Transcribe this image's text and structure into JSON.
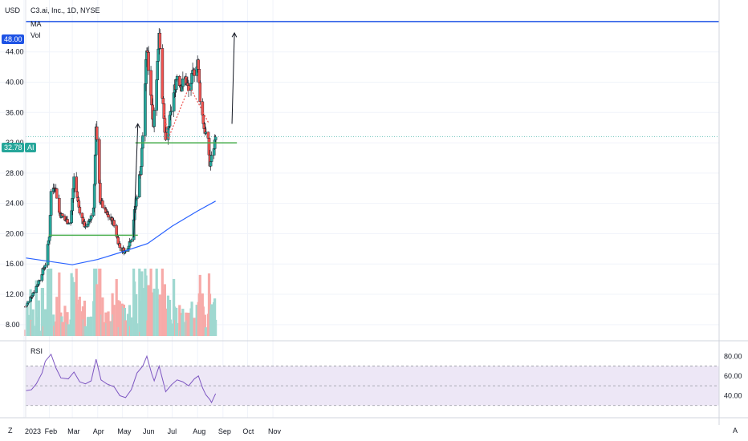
{
  "header": {
    "symbol": "C3.ai, Inc., 1D, NYSE",
    "ind1": "MA",
    "ind2": "Vol",
    "currency": "USD",
    "rsi_label": "RSI",
    "corner_left": "Z",
    "corner_right": "A"
  },
  "badges": {
    "level_value": "48.00",
    "last_value": "32.78",
    "ai_tag": "AI"
  },
  "colors": {
    "up": "#26a69a",
    "down": "#ef5350",
    "up_vol": "#9fd8d0",
    "down_vol": "#f7aaa8",
    "ma": "#2962ff",
    "level": "#1e53e5",
    "support": "#4caf50",
    "rsi": "#7e57c2",
    "rsi_band": "#ede7f6"
  },
  "chart_data": {
    "type": "candlestick",
    "title": "C3.ai, Inc., 1D, NYSE",
    "price_axis": {
      "ticks": [
        "8.00",
        "12.00",
        "16.00",
        "20.00",
        "24.00",
        "28.00",
        "32.00",
        "36.00",
        "40.00",
        "44.00"
      ],
      "range": [
        6.5,
        50
      ]
    },
    "rsi_axis": {
      "ticks": [
        "40.00",
        "60.00",
        "80.00"
      ],
      "range": [
        20,
        90
      ],
      "band": [
        30,
        70
      ]
    },
    "time_axis": [
      "2023",
      "Feb",
      "Mar",
      "Apr",
      "May",
      "Jun",
      "Jul",
      "Aug",
      "Sep",
      "Oct",
      "Nov"
    ],
    "start_date": "2023-01-03",
    "end_date": "2023-08-23",
    "anchors": [
      [
        "2023-01-03",
        10.4
      ],
      [
        "2023-01-17",
        13.2
      ],
      [
        "2023-01-27",
        16.0
      ],
      [
        "2023-02-01",
        19.8
      ],
      [
        "2023-02-03",
        25.5
      ],
      [
        "2023-02-08",
        26.5
      ],
      [
        "2023-02-13",
        22.8
      ],
      [
        "2023-02-20",
        21.8
      ],
      [
        "2023-02-27",
        21.5
      ],
      [
        "2023-03-03",
        27.5
      ],
      [
        "2023-03-09",
        23.5
      ],
      [
        "2023-03-15",
        21.2
      ],
      [
        "2023-03-20",
        21.0
      ],
      [
        "2023-03-27",
        23.5
      ],
      [
        "2023-03-30",
        33.8
      ],
      [
        "2023-04-04",
        24.5
      ],
      [
        "2023-04-10",
        22.8
      ],
      [
        "2023-04-20",
        21.5
      ],
      [
        "2023-04-28",
        18.2
      ],
      [
        "2023-05-05",
        17.6
      ],
      [
        "2023-05-12",
        19.5
      ],
      [
        "2023-05-18",
        24.5
      ],
      [
        "2023-05-24",
        29.0
      ],
      [
        "2023-05-26",
        33.0
      ],
      [
        "2023-05-31",
        44.5
      ],
      [
        "2023-06-05",
        38.5
      ],
      [
        "2023-06-08",
        34.5
      ],
      [
        "2023-06-13",
        42.5
      ],
      [
        "2023-06-15",
        47.0
      ],
      [
        "2023-06-20",
        36.5
      ],
      [
        "2023-06-23",
        31.8
      ],
      [
        "2023-06-28",
        35.0
      ],
      [
        "2023-07-03",
        38.5
      ],
      [
        "2023-07-07",
        41.0
      ],
      [
        "2023-07-12",
        39.5
      ],
      [
        "2023-07-17",
        40.5
      ],
      [
        "2023-07-21",
        38.8
      ],
      [
        "2023-07-26",
        40.8
      ],
      [
        "2023-08-01",
        43.0
      ],
      [
        "2023-08-04",
        38.0
      ],
      [
        "2023-08-09",
        34.0
      ],
      [
        "2023-08-14",
        32.0
      ],
      [
        "2023-08-16",
        29.0
      ],
      [
        "2023-08-21",
        31.5
      ],
      [
        "2023-08-23",
        32.78
      ]
    ],
    "ma200": [
      [
        "2023-01-03",
        16.8
      ],
      [
        "2023-03-01",
        15.9
      ],
      [
        "2023-04-01",
        16.6
      ],
      [
        "2023-05-01",
        17.6
      ],
      [
        "2023-06-01",
        18.7
      ],
      [
        "2023-07-01",
        21.0
      ],
      [
        "2023-08-01",
        23.0
      ],
      [
        "2023-08-23",
        24.3
      ]
    ],
    "rsi": [
      [
        "2023-01-03",
        45
      ],
      [
        "2023-01-10",
        46
      ],
      [
        "2023-01-16",
        52
      ],
      [
        "2023-01-23",
        63
      ],
      [
        "2023-01-27",
        75
      ],
      [
        "2023-02-03",
        82
      ],
      [
        "2023-02-09",
        68
      ],
      [
        "2023-02-15",
        58
      ],
      [
        "2023-02-24",
        57
      ],
      [
        "2023-03-03",
        64
      ],
      [
        "2023-03-10",
        54
      ],
      [
        "2023-03-17",
        52
      ],
      [
        "2023-03-24",
        55
      ],
      [
        "2023-03-30",
        77
      ],
      [
        "2023-04-05",
        56
      ],
      [
        "2023-04-12",
        52
      ],
      [
        "2023-04-21",
        49
      ],
      [
        "2023-04-28",
        40
      ],
      [
        "2023-05-05",
        38
      ],
      [
        "2023-05-12",
        46
      ],
      [
        "2023-05-19",
        63
      ],
      [
        "2023-05-26",
        70
      ],
      [
        "2023-05-31",
        80
      ],
      [
        "2023-06-06",
        62
      ],
      [
        "2023-06-09",
        55
      ],
      [
        "2023-06-15",
        70
      ],
      [
        "2023-06-20",
        54
      ],
      [
        "2023-06-23",
        44
      ],
      [
        "2023-06-30",
        51
      ],
      [
        "2023-07-07",
        56
      ],
      [
        "2023-07-14",
        54
      ],
      [
        "2023-07-21",
        50
      ],
      [
        "2023-07-28",
        57
      ],
      [
        "2023-08-02",
        60
      ],
      [
        "2023-08-07",
        48
      ],
      [
        "2023-08-11",
        41
      ],
      [
        "2023-08-16",
        36
      ],
      [
        "2023-08-18",
        33
      ],
      [
        "2023-08-23",
        42
      ]
    ],
    "horizontal_level": 48.0,
    "support_lines": [
      {
        "from": "2023-01-31",
        "to": "2023-05-20",
        "price": 19.8
      },
      {
        "from": "2023-05-17",
        "to": "2023-09-18",
        "price": 32.0
      }
    ],
    "arrows": [
      {
        "from": [
          "2023-05-15",
          19.5
        ],
        "to": [
          "2023-05-20",
          34.5
        ]
      },
      {
        "from": [
          "2023-09-12",
          34.5
        ],
        "to": [
          "2023-09-15",
          46.5
        ]
      }
    ],
    "dotted_path": [
      [
        "2023-06-20",
        37.5
      ],
      [
        "2023-06-26",
        32.5
      ],
      [
        "2023-07-22",
        39.5
      ],
      [
        "2023-08-15",
        34.5
      ]
    ]
  }
}
